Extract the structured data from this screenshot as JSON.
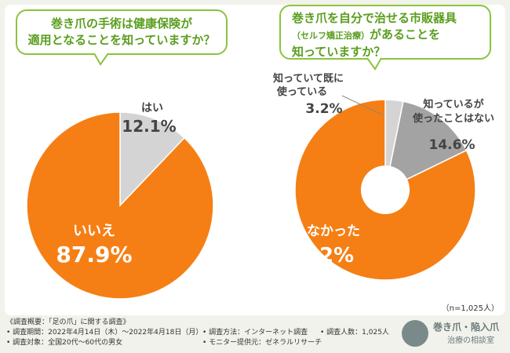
{
  "colors": {
    "orange": "#f57f14",
    "lightgray": "#d4d4d4",
    "midgray": "#a3a3a3",
    "green": "#8cc43c",
    "greentext": "#5a9e1e",
    "background": "#f2f2ec"
  },
  "q1": {
    "line1": "巻き爪の手術は健康保険が",
    "line2": "適用となることを知っていますか？"
  },
  "q2": {
    "line1": "巻き爪を自分で治せる市販器具",
    "line2_small": "（セルフ矯正治療）",
    "line2_rest": "があることを",
    "line3": "知っていますか？"
  },
  "chart_data": [
    {
      "type": "pie",
      "title": "巻き爪の手術は健康保険が適用となることを知っていますか？",
      "slices": [
        {
          "label": "はい",
          "value": 12.1,
          "value_label": "12.1%",
          "color": "#d4d4d4"
        },
        {
          "label": "いいえ",
          "value": 87.9,
          "value_label": "87.9%",
          "color": "#f57f14"
        }
      ]
    },
    {
      "type": "pie",
      "title": "巻き爪を自分で治せる市販器具（セルフ矯正治療）があることを知っていますか？",
      "donut": true,
      "slices": [
        {
          "label_lines": [
            "知っていて既に",
            "使っている"
          ],
          "value": 3.2,
          "value_label": "3.2%",
          "color": "#d4d4d4"
        },
        {
          "label_lines": [
            "知っているが",
            "使ったことはない"
          ],
          "value": 14.6,
          "value_label": "14.6%",
          "color": "#a3a3a3"
        },
        {
          "label_lines": [
            "知らなかった"
          ],
          "value": 82.2,
          "value_label": "82.2%",
          "color": "#f57f14"
        }
      ],
      "n_label": "（n=1,025人）"
    }
  ],
  "footer": {
    "heading": "《調査概要：「足の爪」に関する調査》",
    "period": "• 調査期間：2022年4月14日（木）～2022年4月18日（月）",
    "method": "• 調査方法：インターネット調査",
    "people": "• 調査人数：1,025人",
    "target": "• 調査対象：全国20代～60代の男女",
    "source": "• モニター提供元：ゼネラルリサーチ"
  },
  "logo": {
    "name": "巻き爪・陥入爪",
    "sub": "治療の相談室"
  }
}
